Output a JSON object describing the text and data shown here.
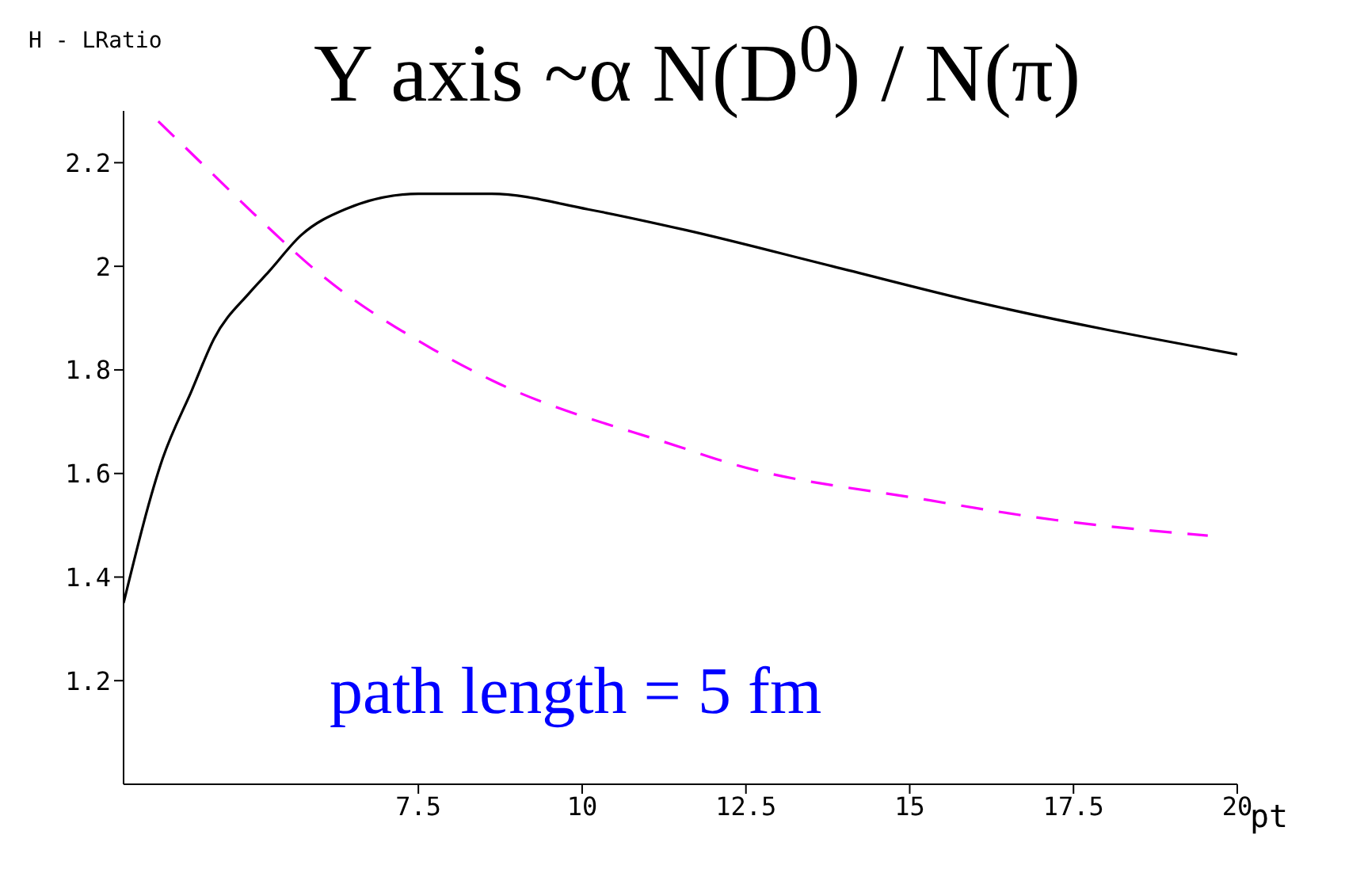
{
  "chart_data": {
    "type": "line",
    "title": "Y axis ~α N(D$^{0}$) / N(π)",
    "ylabel": "H - LRatio",
    "xlabel": "pt",
    "annotations": [
      "path length = 5 fm"
    ],
    "xlim": [
      3,
      20
    ],
    "xticks": [
      7.5,
      10,
      12.5,
      15,
      17.5,
      20
    ],
    "ylim": [
      1.0,
      2.3
    ],
    "yticks": [
      1.2,
      1.4,
      1.6,
      1.8,
      2,
      2.2
    ],
    "series": [
      {
        "color": "#000000",
        "line_style": "solid",
        "x": [
          3,
          3.6,
          4.04,
          4.38,
          4.93,
          5.22,
          5.71,
          6.38,
          7.5,
          8.62,
          10.09,
          11.58,
          13.82,
          16.05,
          20
        ],
        "values": [
          1.35,
          1.63,
          1.76,
          1.86,
          1.95,
          1.99,
          2.06,
          2.11,
          2.14,
          2.14,
          2.11,
          2.07,
          2.0,
          1.93,
          1.83
        ]
      },
      {
        "color": "#ff00ff",
        "line_style": "dashed",
        "x": [
          3.53,
          4.55,
          5.0,
          6.05,
          7.72,
          8.62,
          11.52,
          12.25,
          15.22,
          17.23,
          19.55
        ],
        "values": [
          2.28,
          2.155,
          2.1,
          1.98,
          1.84,
          1.78,
          1.65,
          1.62,
          1.55,
          1.51,
          1.48
        ]
      }
    ]
  }
}
